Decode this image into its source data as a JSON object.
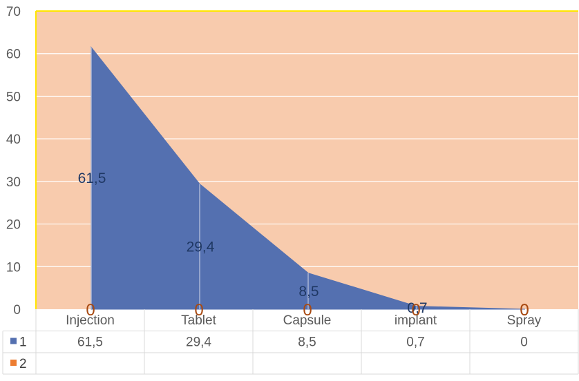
{
  "chart_data": {
    "type": "area",
    "categories": [
      "Injection",
      "Tablet",
      "Capsule",
      "implant",
      "Spray"
    ],
    "series": [
      {
        "name": "1",
        "values": [
          61.5,
          29.4,
          8.5,
          0.7,
          0
        ],
        "labels": [
          "61,5",
          "29,4",
          "8,5",
          "0,7",
          "0"
        ]
      },
      {
        "name": "2",
        "values": [
          0,
          0,
          0,
          0,
          0
        ],
        "labels": [
          "0",
          "0",
          "0",
          "0",
          "0"
        ]
      }
    ],
    "ylim": [
      0,
      70
    ],
    "yticks": [
      "0",
      "10",
      "20",
      "30",
      "40",
      "50",
      "60",
      "70"
    ],
    "grid": true,
    "legend": "data-table",
    "data_table": true,
    "colors": {
      "plot_background": "#f8cbad",
      "plot_border": "#ffe600",
      "series1": "#5470b0",
      "series2": "#ed7d31",
      "gridline": "#ffffff"
    }
  }
}
